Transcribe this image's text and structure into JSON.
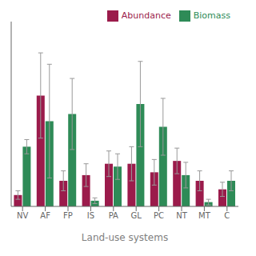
{
  "chart_data": {
    "type": "bar",
    "xlabel": "Land-use systems",
    "categories": [
      "NV",
      "AF",
      "FP",
      "IS",
      "PA",
      "GL",
      "PC",
      "NT",
      "MT",
      "C"
    ],
    "series": [
      {
        "name": "Abundance",
        "color": "#9b1b4b",
        "values": [
          8,
          78,
          18,
          22,
          30,
          30,
          24,
          32,
          18,
          12
        ],
        "errors": [
          3,
          30,
          7,
          8,
          9,
          12,
          9,
          9,
          7,
          5
        ]
      },
      {
        "name": "Biomass",
        "color": "#2e8b57",
        "values": [
          42,
          60,
          65,
          4,
          28,
          72,
          56,
          22,
          3,
          18
        ],
        "errors": [
          5,
          40,
          25,
          2,
          9,
          30,
          20,
          9,
          2,
          7
        ]
      }
    ],
    "ylim": [
      0,
      130
    ],
    "grid": false,
    "legend": "upper right",
    "tick_labels": "x"
  }
}
